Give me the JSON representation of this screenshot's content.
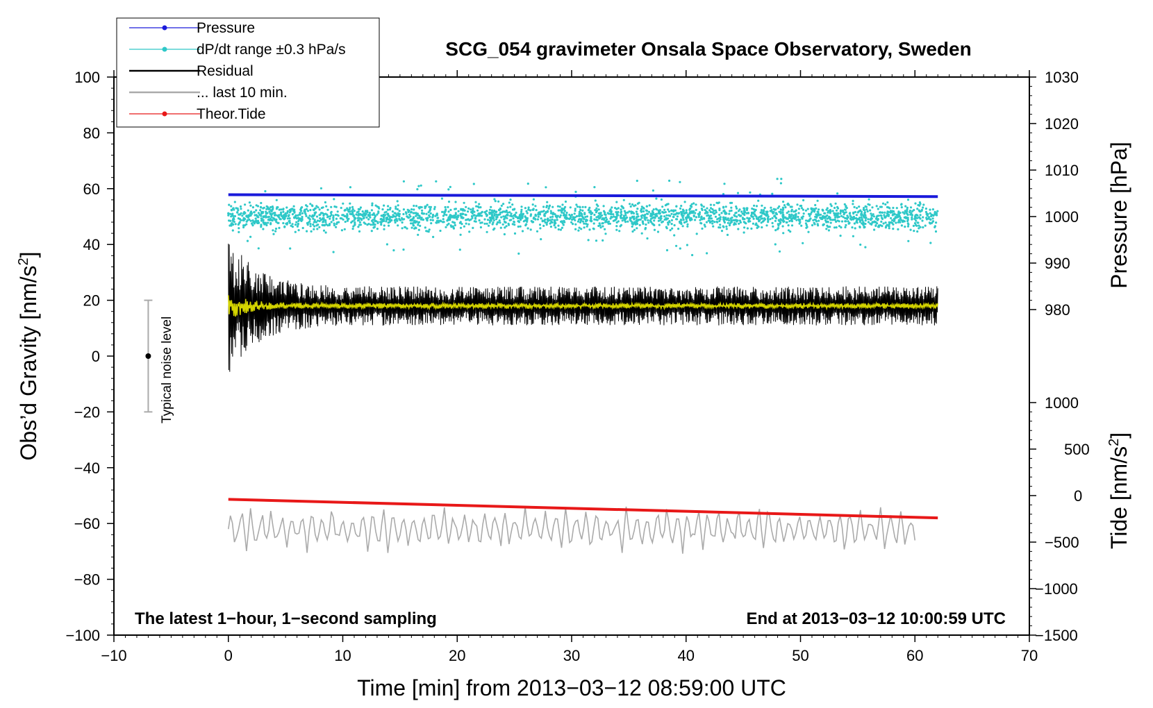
{
  "chart_data": {
    "type": "line",
    "title": "SCG_054 gravimeter Onsala Space Observatory, Sweden",
    "xlabel": "Time [min] from 2013−03−12 08:59:00 UTC",
    "ylabel_left": "Obs’d Gravity [nm/s",
    "ylabel_left_sup": "2",
    "ylabel_left_end": "]",
    "ylabel_right_pressure": "Pressure [hPa]",
    "ylabel_right_tide": "Tide [nm/s",
    "ylabel_right_tide_sup": "2",
    "ylabel_right_tide_end": "]",
    "xlim": [
      -10,
      70
    ],
    "ylim_left": [
      -100,
      100
    ],
    "pressure_range": [
      980,
      1030
    ],
    "tide_range": [
      -1500,
      1000
    ],
    "x_ticks": [
      "−10",
      "0",
      "10",
      "20",
      "30",
      "40",
      "50",
      "60",
      "70"
    ],
    "x_tick_values": [
      -10,
      0,
      10,
      20,
      30,
      40,
      50,
      60,
      70
    ],
    "y_left_ticks": [
      "100",
      "80",
      "60",
      "40",
      "20",
      "0",
      "−20",
      "−40",
      "−60",
      "−80",
      "−100"
    ],
    "y_left_tick_values": [
      100,
      80,
      60,
      40,
      20,
      0,
      -20,
      -40,
      -60,
      -80,
      -100
    ],
    "pressure_ticks": [
      "1030",
      "1020",
      "1010",
      "1000",
      "990",
      "980"
    ],
    "pressure_tick_values": [
      1030,
      1020,
      1010,
      1000,
      990,
      980
    ],
    "tide_ticks": [
      "1000",
      "500",
      "0",
      "−500",
      "−1000",
      "−1500"
    ],
    "tide_tick_values": [
      1000,
      500,
      0,
      -500,
      -1000,
      -1500
    ],
    "legend": {
      "position": "top-left",
      "entries": [
        {
          "label": "Pressure",
          "color": "#1a1adb",
          "marker": true
        },
        {
          "label": "dP/dt range ±0.3 hPa/s",
          "color": "#2ec8c8",
          "marker": true
        },
        {
          "label": "Residual",
          "color": "#000000",
          "marker": false
        },
        {
          "label": "... last 10 min.",
          "color": "#aaaaaa",
          "marker": false
        },
        {
          "label": "Theor.Tide",
          "color": "#e81818",
          "marker": true
        }
      ]
    },
    "annotations": {
      "left": "The latest 1−hour, 1−second sampling",
      "right": "End at 2013−03−12 10:00:59 UTC",
      "noise_label": "Typical noise level"
    },
    "series": [
      {
        "name": "Pressure",
        "axis": "pressure",
        "color": "#1a1adb",
        "x": [
          0,
          62
        ],
        "values": [
          1004.7,
          1004.3
        ]
      },
      {
        "name": "dP/dt range ±0.3 hPa/s",
        "axis": "left",
        "color": "#2ec8c8",
        "x_range": [
          0,
          62
        ],
        "center": 50,
        "spread": 4,
        "outlier_min": 34,
        "outlier_max": 64
      },
      {
        "name": "Residual",
        "axis": "left",
        "color": "#000000",
        "x_range": [
          0,
          62
        ],
        "center": 18,
        "amplitude_start": 25,
        "amplitude_end": 7
      },
      {
        "name": "Residual (smoothed)",
        "axis": "left",
        "color": "#d4d400",
        "x_range": [
          0,
          62
        ],
        "center": 18
      },
      {
        "name": "... last 10 min.",
        "axis": "left",
        "color": "#aaaaaa",
        "x_range": [
          0,
          60
        ],
        "center": -62,
        "amplitude": 9
      },
      {
        "name": "Theor.Tide",
        "axis": "tide",
        "color": "#e81818",
        "x": [
          0,
          62
        ],
        "values": [
          -40,
          -240
        ]
      }
    ],
    "noise_bar": {
      "x": -7,
      "center": 0,
      "low": -20,
      "high": 20
    }
  }
}
